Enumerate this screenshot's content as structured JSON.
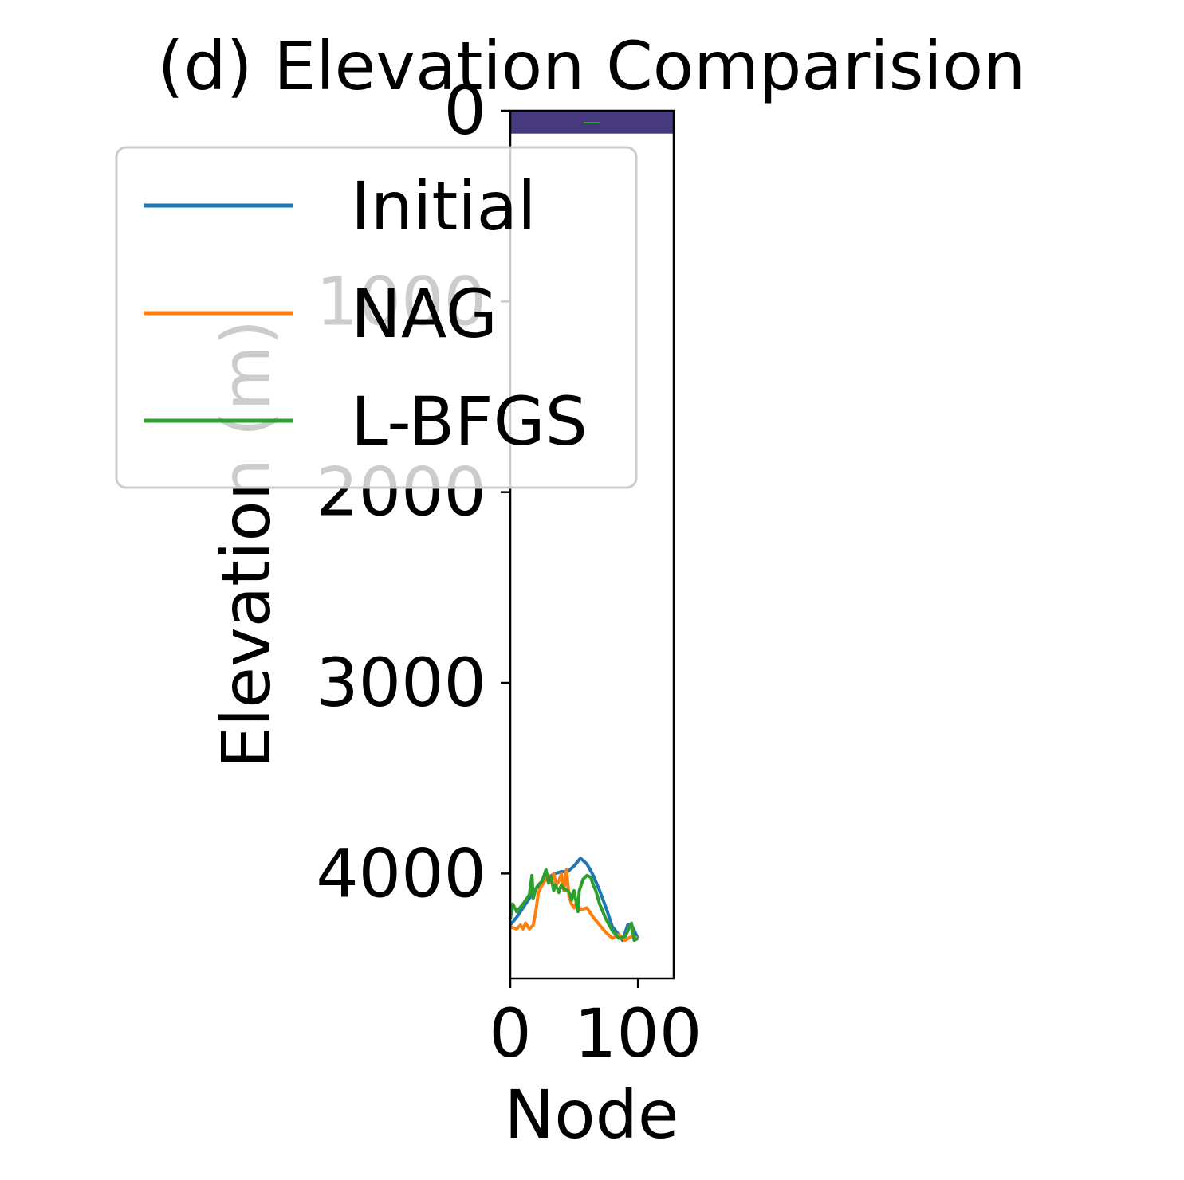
{
  "chart_data": {
    "type": "line",
    "title": "(d) Elevation Comparision",
    "xlabel": "Node",
    "ylabel": "Elevation (m)",
    "xlim": [
      0,
      128
    ],
    "ylim": [
      4550,
      0
    ],
    "y_inverted": true,
    "x_ticks": [
      0,
      100
    ],
    "x_tick_labels": [
      "0",
      "100"
    ],
    "y_ticks": [
      0,
      1000,
      2000,
      3000,
      4000
    ],
    "y_tick_labels": [
      "0",
      "1000",
      "2000",
      "3000",
      "4000"
    ],
    "grid": false,
    "legend_position": "upper-left",
    "background_band": {
      "y_from": 0,
      "y_to": 120,
      "color": "#46397e"
    },
    "series": [
      {
        "name": "Initial",
        "color": "#1f77b4",
        "x": [
          0,
          5,
          10,
          15,
          20,
          25,
          30,
          35,
          40,
          45,
          50,
          55,
          60,
          65,
          70,
          75,
          80,
          85,
          88,
          92,
          95,
          100
        ],
        "y": [
          4270,
          4230,
          4180,
          4130,
          4080,
          4050,
          4020,
          4000,
          3990,
          3990,
          3960,
          3920,
          3950,
          4010,
          4090,
          4180,
          4280,
          4320,
          4350,
          4270,
          4270,
          4340
        ]
      },
      {
        "name": "NAG",
        "color": "#ff7f0e",
        "x": [
          0,
          5,
          8,
          10,
          12,
          15,
          18,
          20,
          22,
          25,
          28,
          30,
          32,
          34,
          36,
          38,
          40,
          42,
          44,
          46,
          48,
          50,
          52,
          55,
          60,
          65,
          70,
          75,
          80,
          85,
          90,
          95,
          100
        ],
        "y": [
          4280,
          4290,
          4270,
          4290,
          4260,
          4290,
          4270,
          4200,
          4100,
          4060,
          4030,
          4010,
          4050,
          4000,
          4060,
          4040,
          4000,
          4090,
          3980,
          4120,
          4160,
          4180,
          4150,
          4190,
          4180,
          4230,
          4270,
          4310,
          4340,
          4320,
          4350,
          4330,
          4340
        ]
      },
      {
        "name": "L-BFGS",
        "color": "#2ca02c",
        "x": [
          0,
          2,
          5,
          10,
          15,
          17,
          18,
          20,
          22,
          25,
          28,
          30,
          32,
          34,
          35,
          37,
          38,
          40,
          42,
          45,
          47,
          48,
          50,
          53,
          54,
          55,
          57,
          60,
          63,
          65,
          67,
          70,
          75,
          80,
          85,
          90,
          95,
          97,
          100
        ],
        "y": [
          4240,
          4160,
          4200,
          4160,
          4110,
          4010,
          4130,
          4080,
          4060,
          4040,
          3980,
          4050,
          4020,
          4090,
          4060,
          4080,
          4100,
          4060,
          4080,
          4090,
          4110,
          4140,
          4090,
          4200,
          4090,
          4070,
          4030,
          4010,
          4020,
          4060,
          4090,
          4160,
          4240,
          4300,
          4340,
          4330,
          4260,
          4350,
          4340
        ]
      }
    ]
  }
}
